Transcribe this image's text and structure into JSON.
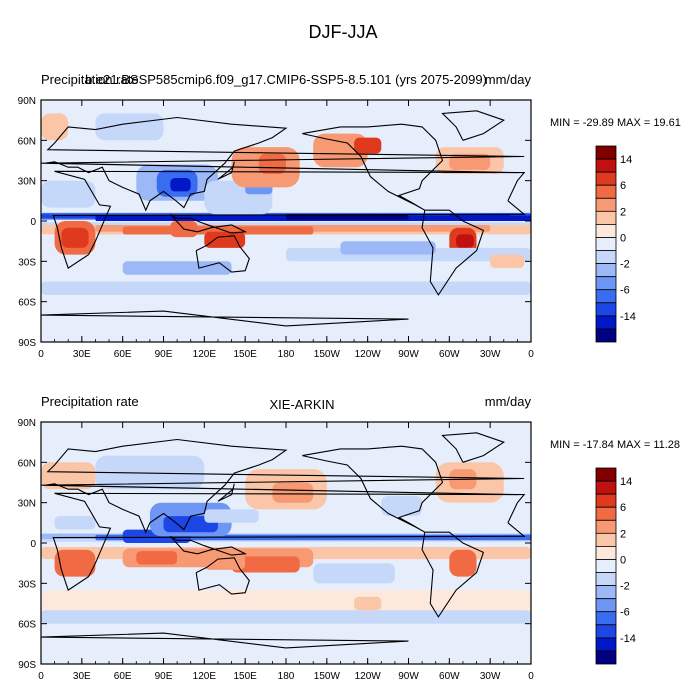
{
  "figure": {
    "title": "DJF-JJA"
  },
  "palette": [
    "#000080",
    "#0018c8",
    "#1c46e6",
    "#3a6cf0",
    "#6e96f4",
    "#9cb8f6",
    "#c6d8fa",
    "#e6eefc",
    "#fde8dc",
    "#fbc6a8",
    "#f79a74",
    "#f06a44",
    "#e03a1e",
    "#c01010",
    "#800000"
  ],
  "chart_data": [
    {
      "type": "heatmap",
      "title_left": "Precipitation rate",
      "title_center": "b.e21.BSSP585cmip6.f09_g17.CMIP6-SSP5-8.5.101 (yrs 2075-2099)",
      "title_right": "mm/day",
      "stats": "MIN = -29.89 MAX =  19.61",
      "x_ticks": [
        "0",
        "30E",
        "60E",
        "90E",
        "120E",
        "150E",
        "180",
        "150W",
        "120W",
        "90W",
        "60W",
        "30W",
        "0"
      ],
      "y_ticks": [
        "90N",
        "60N",
        "30N",
        "0",
        "30S",
        "60S",
        "90S"
      ],
      "colorbar_labels": [
        "14",
        "6",
        "2",
        "0",
        "-2",
        "-6",
        "-14"
      ],
      "contour_levels": [
        -20,
        -14,
        -10,
        -6,
        -4,
        -2,
        -1,
        0,
        1,
        2,
        4,
        6,
        10,
        14,
        20
      ],
      "xlim": [
        0,
        360
      ],
      "ylim": [
        -90,
        90
      ]
    },
    {
      "type": "heatmap",
      "title_left": "Precipitation rate",
      "title_center": "XIE-ARKIN",
      "title_right": "mm/day",
      "stats": "MIN = -17.84 MAX =  11.28",
      "x_ticks": [
        "0",
        "30E",
        "60E",
        "90E",
        "120E",
        "150E",
        "180",
        "150W",
        "120W",
        "90W",
        "60W",
        "30W",
        "0"
      ],
      "y_ticks": [
        "90N",
        "60N",
        "30N",
        "0",
        "30S",
        "60S",
        "90S"
      ],
      "colorbar_labels": [
        "14",
        "6",
        "2",
        "0",
        "-2",
        "-6",
        "-14"
      ],
      "contour_levels": [
        -20,
        -14,
        -10,
        -6,
        -4,
        -2,
        -1,
        0,
        1,
        2,
        4,
        6,
        10,
        14,
        20
      ],
      "xlim": [
        0,
        360
      ],
      "ylim": [
        -90,
        90
      ]
    }
  ]
}
